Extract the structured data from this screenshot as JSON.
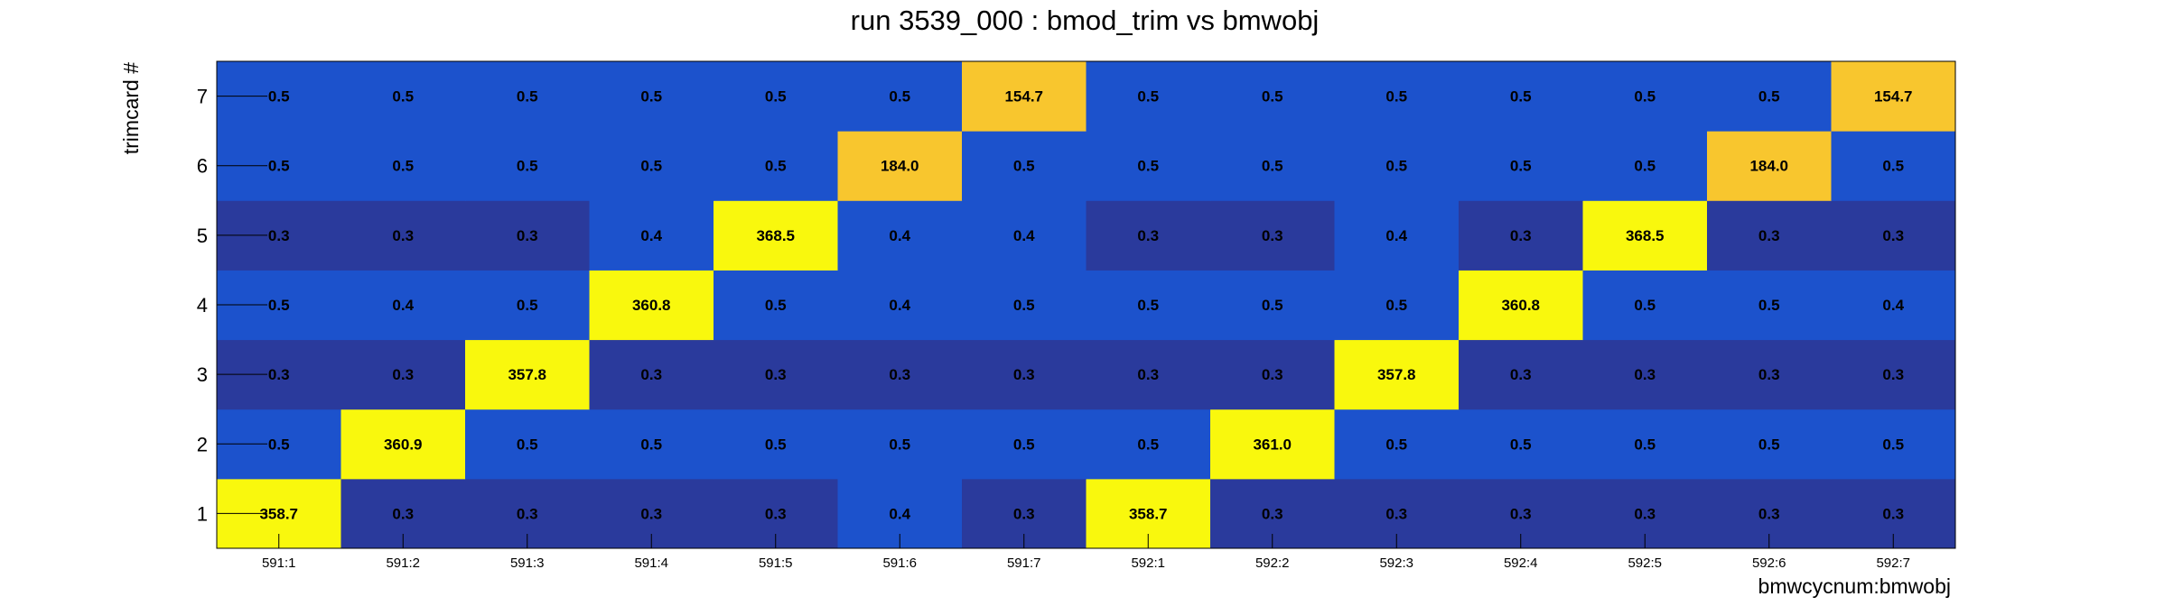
{
  "chart_data": {
    "type": "heatmap",
    "title": "run 3539_000 : bmod_trim vs bmwobj",
    "xlabel": "bmwcycnum:bmwobj",
    "ylabel": "trimcard #",
    "x_categories": [
      "591:1",
      "591:2",
      "591:3",
      "591:4",
      "591:5",
      "591:6",
      "591:7",
      "592:1",
      "592:2",
      "592:3",
      "592:4",
      "592:5",
      "592:6",
      "592:7"
    ],
    "y_categories": [
      "1",
      "2",
      "3",
      "4",
      "5",
      "6",
      "7"
    ],
    "values": [
      [
        "358.7",
        "0.3",
        "0.3",
        "0.3",
        "0.3",
        "0.4",
        "0.3",
        "358.7",
        "0.3",
        "0.3",
        "0.3",
        "0.3",
        "0.3",
        "0.3"
      ],
      [
        "0.5",
        "360.9",
        "0.5",
        "0.5",
        "0.5",
        "0.5",
        "0.5",
        "0.5",
        "361.0",
        "0.5",
        "0.5",
        "0.5",
        "0.5",
        "0.5"
      ],
      [
        "0.3",
        "0.3",
        "357.8",
        "0.3",
        "0.3",
        "0.3",
        "0.3",
        "0.3",
        "0.3",
        "357.8",
        "0.3",
        "0.3",
        "0.3",
        "0.3"
      ],
      [
        "0.5",
        "0.4",
        "0.5",
        "360.8",
        "0.5",
        "0.4",
        "0.5",
        "0.5",
        "0.5",
        "0.5",
        "360.8",
        "0.5",
        "0.5",
        "0.4"
      ],
      [
        "0.3",
        "0.3",
        "0.3",
        "0.4",
        "368.5",
        "0.4",
        "0.4",
        "0.3",
        "0.3",
        "0.4",
        "0.3",
        "368.5",
        "0.3",
        "0.3"
      ],
      [
        "0.5",
        "0.5",
        "0.5",
        "0.5",
        "0.5",
        "184.0",
        "0.5",
        "0.5",
        "0.5",
        "0.5",
        "0.5",
        "0.5",
        "184.0",
        "0.5"
      ],
      [
        "0.5",
        "0.5",
        "0.5",
        "0.5",
        "0.5",
        "0.5",
        "154.7",
        "0.5",
        "0.5",
        "0.5",
        "0.5",
        "0.5",
        "0.5",
        "154.7"
      ]
    ],
    "colors": {
      "low_dark": "#2a3a9c",
      "low_mid": "#1c52cc",
      "mid_orange": "#f8c62e",
      "high_yellow": "#f9f80d"
    },
    "legend": "none",
    "grid": false
  }
}
